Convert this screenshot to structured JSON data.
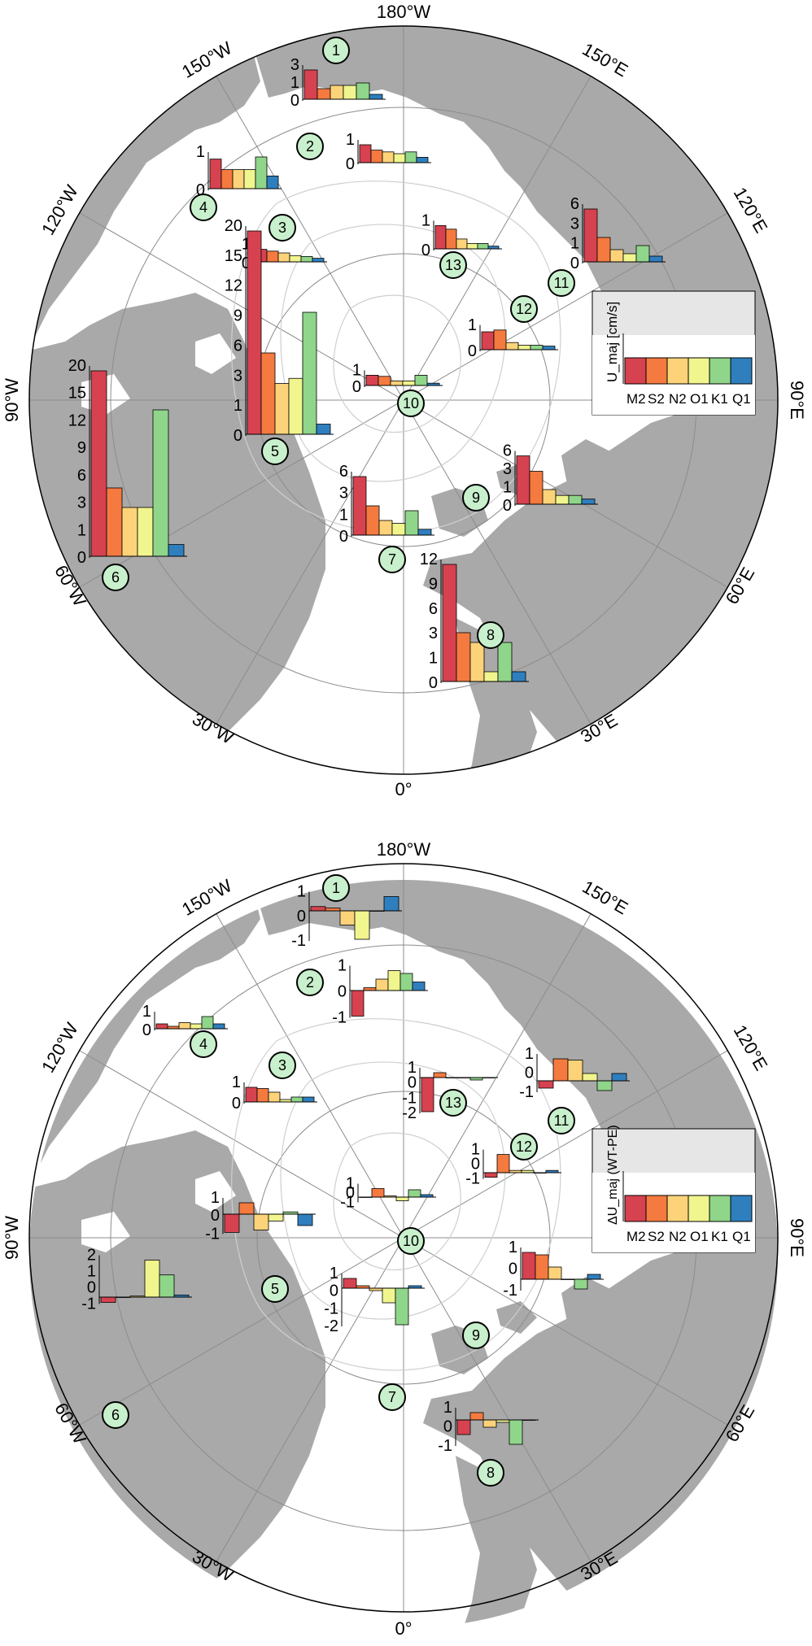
{
  "colors": {
    "land": "#a9a9a9",
    "ocean": "#ffffff",
    "contour": "#cfcfcf",
    "grid": "#8c8c8c",
    "marker_fill": "#c9f0cd",
    "legend_bg": "#e6e6e6",
    "M2": "#d6424f",
    "S2": "#f47a3f",
    "N2": "#fdd37a",
    "O1": "#f1f58e",
    "K1": "#8fd58a",
    "Q1": "#2f7fbf"
  },
  "longitude_labels": [
    "180°W",
    "150°W",
    "120°W",
    "90°W",
    "60°W",
    "30°W",
    "0°",
    "30°E",
    "60°E",
    "90°E",
    "120°E",
    "150°E"
  ],
  "constituents": [
    "M2",
    "S2",
    "N2",
    "O1",
    "K1",
    "Q1"
  ],
  "panels": [
    {
      "legend_title": "U_maj [cm/s]",
      "legend_labels": [
        "M2",
        "S2",
        "N2",
        "O1",
        "K1",
        "Q1"
      ],
      "stations": [
        {
          "id": "1",
          "ticks": [
            "3",
            "1",
            "0"
          ],
          "values": [
            3.6,
            1.3,
            1.7,
            1.7,
            2.0,
            0.6
          ]
        },
        {
          "id": "2",
          "ticks": [
            "1",
            "0"
          ],
          "values": [
            1.0,
            0.7,
            0.6,
            0.5,
            0.6,
            0.3
          ]
        },
        {
          "id": "3",
          "ticks": [
            "1",
            "0"
          ],
          "values": [
            0.7,
            0.6,
            0.5,
            0.35,
            0.3,
            0.2
          ]
        },
        {
          "id": "4",
          "ticks": [
            "1",
            "0"
          ],
          "values": [
            1.4,
            0.9,
            0.9,
            0.9,
            1.5,
            0.6
          ]
        },
        {
          "id": "5",
          "ticks": [
            "20",
            "15",
            "12",
            "9",
            "6",
            "3",
            "1",
            "0"
          ],
          "values": [
            20,
            8,
            5,
            5.5,
            12,
            1
          ]
        },
        {
          "id": "6",
          "ticks": [
            "20",
            "15",
            "12",
            "9",
            "6",
            "3",
            "1",
            "0"
          ],
          "values": [
            19,
            7,
            5,
            5,
            15,
            1.2
          ]
        },
        {
          "id": "7",
          "ticks": [
            "6",
            "3",
            "1",
            "0"
          ],
          "values": [
            6,
            3,
            1.5,
            1.2,
            2.5,
            0.6
          ]
        },
        {
          "id": "8",
          "ticks": [
            "12",
            "9",
            "6",
            "3",
            "1",
            "0"
          ],
          "values": [
            12,
            5,
            4,
            1,
            4,
            1
          ]
        },
        {
          "id": "9",
          "ticks": [
            "6",
            "3",
            "1",
            "0"
          ],
          "values": [
            6.6,
            4.5,
            2,
            1.2,
            1.2,
            0.7
          ]
        },
        {
          "id": "10",
          "ticks": [
            "1",
            "0"
          ],
          "values": [
            0.9,
            0.8,
            0.4,
            0.4,
            0.9,
            0.2
          ]
        },
        {
          "id": "11",
          "ticks": [
            "6",
            "3",
            "1",
            "0"
          ],
          "values": [
            6.5,
            3,
            1.5,
            1,
            2,
            0.7
          ]
        },
        {
          "id": "12",
          "ticks": [
            "1",
            "0"
          ],
          "values": [
            1.0,
            1.1,
            0.4,
            0.25,
            0.25,
            0.2
          ]
        },
        {
          "id": "13",
          "ticks": [
            "1",
            "0"
          ],
          "values": [
            1.3,
            1.1,
            0.55,
            0.3,
            0.3,
            0.15
          ]
        }
      ]
    },
    {
      "legend_title": "ΔU_maj (WT-PE)",
      "legend_labels": [
        "M2",
        "S2",
        "N2",
        "O1",
        "K1",
        "Q1"
      ],
      "stations": [
        {
          "id": "1",
          "ticks": [
            "1",
            "0",
            "-1"
          ],
          "values": [
            0.15,
            0.1,
            -0.5,
            -1.0,
            0,
            0.5
          ]
        },
        {
          "id": "2",
          "ticks": [
            "1",
            "0",
            "-1"
          ],
          "values": [
            -0.9,
            0.1,
            0.4,
            0.7,
            0.6,
            0.3
          ]
        },
        {
          "id": "3",
          "ticks": [
            "1",
            "0"
          ],
          "values": [
            0.6,
            0.55,
            0.4,
            0.1,
            0.2,
            0.2
          ]
        },
        {
          "id": "4",
          "ticks": [
            "1",
            "0"
          ],
          "values": [
            0.2,
            0.1,
            0.25,
            0.2,
            0.5,
            0.2
          ]
        },
        {
          "id": "5",
          "ticks": [
            "1",
            "0",
            "-1"
          ],
          "values": [
            -0.8,
            0.5,
            -0.7,
            -0.3,
            0.1,
            -0.5
          ]
        },
        {
          "id": "6",
          "ticks": [
            "2",
            "1",
            "0",
            "-1"
          ],
          "values": [
            -0.25,
            0,
            0.05,
            1.75,
            1.05,
            0.1
          ]
        },
        {
          "id": "7",
          "ticks": [
            "1",
            "0",
            "-1",
            "-2"
          ],
          "values": [
            0.4,
            0.1,
            -0.1,
            -0.6,
            -1.5,
            0.1
          ]
        },
        {
          "id": "8",
          "ticks": [
            "1",
            "0",
            "-1"
          ],
          "values": [
            -0.6,
            0.3,
            -0.3,
            -0.1,
            -1.0,
            0
          ]
        },
        {
          "id": "9",
          "ticks": [
            "1",
            "0",
            "-1"
          ],
          "values": [
            1.1,
            1.0,
            0.5,
            0,
            -0.4,
            0.2
          ]
        },
        {
          "id": "10",
          "ticks": [
            "1",
            "0",
            "-1"
          ],
          "values": [
            0,
            0.35,
            0.05,
            -0.15,
            0.3,
            0.1
          ]
        },
        {
          "id": "11",
          "ticks": [
            "1",
            "0",
            "-1"
          ],
          "values": [
            -0.3,
            0.9,
            0.85,
            0.3,
            -0.4,
            0.3
          ]
        },
        {
          "id": "12",
          "ticks": [
            "1",
            "0",
            "-1"
          ],
          "values": [
            -0.2,
            0.8,
            0.1,
            0.1,
            0,
            0.1
          ]
        },
        {
          "id": "13",
          "ticks": [
            "1",
            "0",
            "-1",
            "-2"
          ],
          "values": [
            -1.4,
            0.2,
            0,
            0,
            -0.1,
            0
          ]
        }
      ]
    }
  ]
}
